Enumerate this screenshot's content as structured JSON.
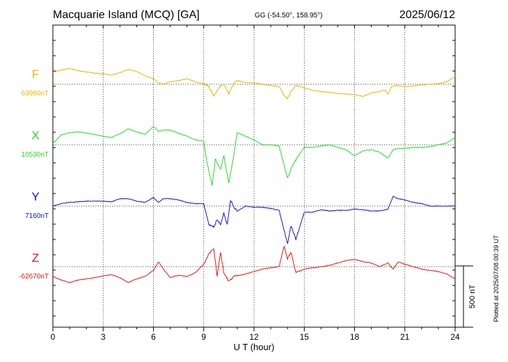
{
  "header": {
    "title": "Macquarie Island (MCQ)  [GA]",
    "coords": "GG (-54.50°, 158.95°)",
    "date": "2025/06/12"
  },
  "plotted_note": "Plotted at 2025/07/08 00:39 UT",
  "scale_label": "500 nT",
  "colors": {
    "F": "#f0b400",
    "X": "#22dd22",
    "Y": "#0a14dc",
    "Z": "#e81414",
    "axis": "#000000"
  },
  "chart_data": {
    "type": "line",
    "xlabel": "U T (hour)",
    "xlim": [
      0,
      24
    ],
    "x_ticks": [
      "0",
      "3",
      "6",
      "9",
      "12",
      "15",
      "18",
      "21",
      "24"
    ],
    "series": [
      {
        "name": "F",
        "baseline_label": "63960nT",
        "baseline": 63960,
        "x": [
          0,
          0.5,
          1,
          1.5,
          2,
          2.5,
          3,
          3.5,
          4,
          4.5,
          5,
          5.5,
          6,
          6.3,
          6.6,
          7,
          7.5,
          8,
          8.5,
          9,
          9.3,
          9.6,
          9.9,
          10.2,
          10.5,
          10.8,
          11,
          11.5,
          12,
          12.5,
          13,
          13.5,
          13.8,
          14,
          14.2,
          14.5,
          15,
          15.5,
          16,
          16.5,
          17,
          17.5,
          18,
          18.5,
          19,
          19.5,
          19.8,
          20,
          20.2,
          20.5,
          21,
          21.5,
          22,
          22.5,
          23,
          23.5,
          24
        ],
        "y": [
          95,
          115,
          130,
          110,
          100,
          90,
          85,
          75,
          95,
          120,
          105,
          70,
          45,
          10,
          0,
          20,
          30,
          45,
          20,
          5,
          -20,
          -95,
          -30,
          5,
          -80,
          10,
          30,
          15,
          10,
          0,
          -10,
          -20,
          -90,
          -120,
          -60,
          -10,
          -30,
          -50,
          -60,
          -65,
          -75,
          -80,
          -85,
          -100,
          -70,
          -60,
          -45,
          -80,
          -20,
          -10,
          -20,
          -15,
          -5,
          0,
          5,
          20,
          65
        ]
      },
      {
        "name": "X",
        "baseline_label": "10530nT",
        "baseline": 10530,
        "x": [
          0,
          0.5,
          1,
          1.5,
          2,
          2.5,
          3,
          3.5,
          4,
          4.5,
          5,
          5.5,
          6,
          6.3,
          6.6,
          7,
          7.5,
          8,
          8.5,
          9,
          9.2,
          9.5,
          9.7,
          10,
          10.2,
          10.5,
          10.8,
          11,
          11.5,
          12,
          12.5,
          13,
          13.5,
          13.8,
          14,
          14.3,
          14.6,
          15,
          15.5,
          16,
          16.5,
          17,
          17.5,
          18,
          18.5,
          19,
          19.5,
          20,
          20.3,
          20.6,
          21,
          21.5,
          22,
          22.5,
          23,
          23.5,
          24
        ],
        "y": [
          10,
          80,
          100,
          105,
          95,
          85,
          70,
          60,
          90,
          130,
          105,
          85,
          150,
          110,
          120,
          120,
          95,
          70,
          40,
          30,
          -150,
          -330,
          -120,
          -200,
          -90,
          -310,
          -80,
          100,
          70,
          40,
          0,
          0,
          -10,
          -170,
          -270,
          -170,
          -100,
          -20,
          -20,
          -10,
          0,
          -20,
          -40,
          -90,
          -50,
          -40,
          -60,
          -110,
          -40,
          -30,
          -30,
          -20,
          -20,
          -15,
          0,
          15,
          60
        ]
      },
      {
        "name": "Y",
        "baseline_label": "7160nT",
        "baseline": 7160,
        "x": [
          0,
          0.5,
          1,
          1.5,
          2,
          2.5,
          3,
          3.5,
          4,
          4.5,
          5,
          5.5,
          6,
          6.3,
          6.6,
          7,
          7.5,
          8,
          8.5,
          9,
          9.3,
          9.6,
          9.8,
          10,
          10.2,
          10.4,
          10.6,
          10.8,
          11,
          11.5,
          12,
          12.5,
          13,
          13.5,
          13.8,
          14,
          14.2,
          14.5,
          15,
          15.5,
          16,
          16.5,
          17,
          17.5,
          18,
          18.5,
          19,
          19.5,
          20,
          20.3,
          20.6,
          21,
          21.5,
          22,
          22.5,
          23,
          23.5,
          24
        ],
        "y": [
          0,
          20,
          30,
          35,
          40,
          40,
          40,
          35,
          60,
          60,
          40,
          30,
          70,
          30,
          60,
          60,
          50,
          30,
          20,
          20,
          -150,
          -170,
          -110,
          -150,
          -60,
          -150,
          50,
          -10,
          -40,
          0,
          -10,
          -10,
          -20,
          -35,
          -200,
          -310,
          -160,
          -270,
          -50,
          -50,
          -30,
          -40,
          -35,
          -35,
          -25,
          -30,
          -40,
          -40,
          -25,
          80,
          60,
          50,
          30,
          20,
          0,
          0,
          0,
          0
        ]
      },
      {
        "name": "Z",
        "baseline_label": "-62670nT",
        "baseline": -62670,
        "x": [
          0,
          0.5,
          1,
          1.5,
          2,
          2.5,
          3,
          3.5,
          4,
          4.5,
          5,
          5.5,
          6,
          6.3,
          6.6,
          7,
          7.5,
          8,
          8.5,
          9,
          9.3,
          9.6,
          9.8,
          10,
          10.2,
          10.5,
          10.8,
          11,
          11.5,
          12,
          12.5,
          13,
          13.5,
          13.8,
          14,
          14.2,
          14.5,
          15,
          15.5,
          16,
          16.5,
          17,
          17.5,
          18,
          18.5,
          19,
          19.5,
          20,
          20.3,
          20.6,
          21,
          21.5,
          22,
          22.5,
          23,
          23.5,
          24
        ],
        "y": [
          -80,
          -110,
          -130,
          -110,
          -100,
          -90,
          -75,
          -65,
          -90,
          -130,
          -100,
          -80,
          -30,
          40,
          -20,
          -90,
          -70,
          -80,
          -50,
          20,
          100,
          150,
          -80,
          120,
          -50,
          -120,
          -80,
          -75,
          -60,
          -40,
          -20,
          -10,
          0,
          170,
          60,
          120,
          -50,
          -20,
          -10,
          0,
          10,
          30,
          50,
          60,
          40,
          30,
          0,
          30,
          -20,
          40,
          20,
          0,
          -20,
          -30,
          -40,
          -60,
          -100
        ]
      }
    ]
  }
}
